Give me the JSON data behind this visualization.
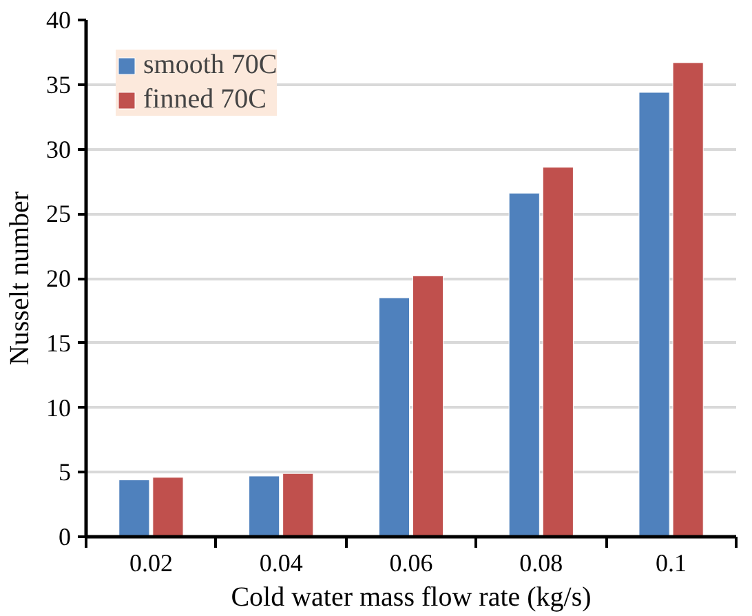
{
  "chart_data": {
    "type": "bar",
    "xlabel": "Cold water mass flow rate (kg/s)",
    "ylabel": "Nusselt number",
    "categories": [
      "0.02",
      "0.04",
      "0.06",
      "0.08",
      "0.1"
    ],
    "series": [
      {
        "name": "smooth 70C",
        "color": "#4f81bd",
        "values": [
          4.4,
          4.7,
          18.5,
          26.6,
          34.4
        ]
      },
      {
        "name": "finned 70C",
        "color": "#c0504d",
        "values": [
          4.6,
          4.9,
          20.2,
          28.6,
          36.7
        ]
      }
    ],
    "ylim": [
      0,
      40
    ],
    "yticks": [
      0,
      5,
      10,
      15,
      20,
      25,
      30,
      35,
      40
    ],
    "grid": "y",
    "legend": "top left"
  }
}
